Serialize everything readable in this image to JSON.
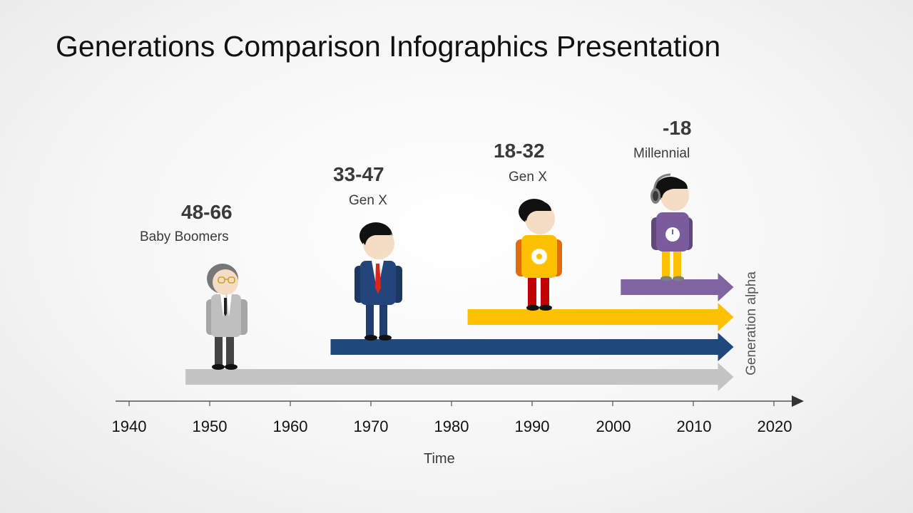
{
  "title": "Generations Comparison Infographics Presentation",
  "generations": [
    {
      "age_range": "48-66",
      "name": "Baby Boomers",
      "color": "#c4c4c4",
      "start_year": 1947
    },
    {
      "age_range": "33-47",
      "name": "Gen X",
      "color": "#1f497d",
      "start_year": 1965
    },
    {
      "age_range": "18-32",
      "name": "Gen X",
      "color": "#ffc000",
      "start_year": 1982
    },
    {
      "age_range": "-18",
      "name": "Millennial",
      "color": "#8064a2",
      "start_year": 2001
    }
  ],
  "arrow_end_year": 2015,
  "axis": {
    "years": [
      "1940",
      "1950",
      "1960",
      "1970",
      "1980",
      "1990",
      "2000",
      "2010",
      "2020"
    ],
    "title": "Time"
  },
  "side_label": "Generation alpha"
}
